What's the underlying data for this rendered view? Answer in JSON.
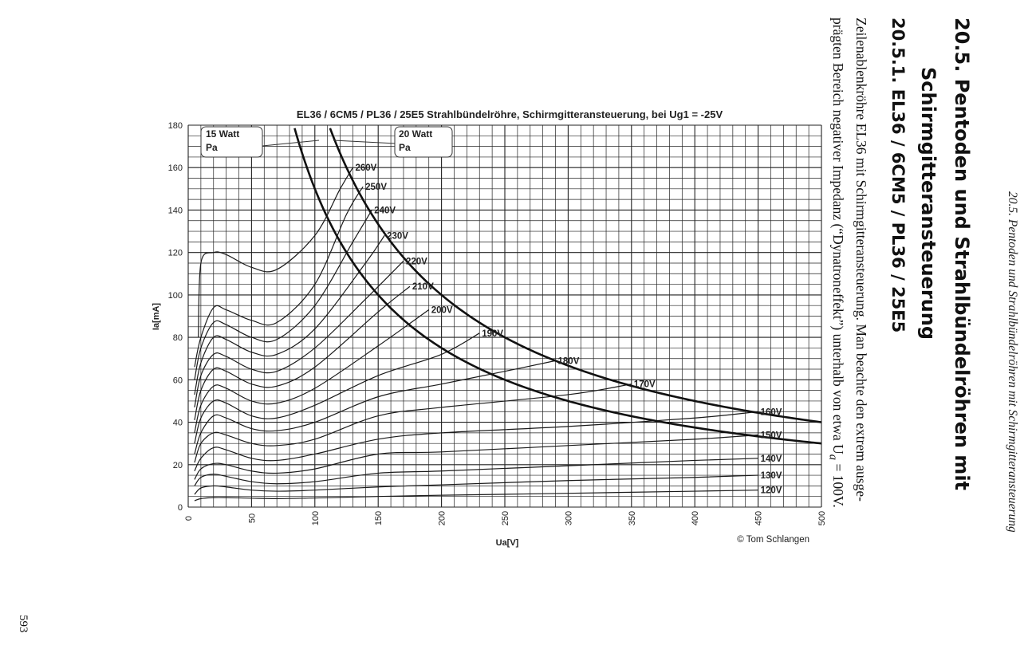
{
  "page": {
    "running_head": "20.5. Pentoden und Strahlbündelröhren mit Schirmgitteransteuerung",
    "section_title_line1": "20.5. Pentoden und Strahlbündelröhren mit",
    "section_title_line2": "Schirmgitteransteuerung",
    "subsection_title": "20.5.1. EL36 / 6CM5 / PL36 / 25E5",
    "body_line1": "Zeilenablenkröhre EL36 mit Schirmgitteransteuerung. Man beachte den extrem ausge-",
    "body_line2": "prägten Bereich negativer Impedanz (“Dynatroneffekt”) unterhalb von etwa U",
    "body_line2_sub": "a",
    "body_line2_end": " = 100V.",
    "page_number": "593"
  },
  "chart_data": {
    "type": "line",
    "title": "EL36 / 6CM5 / PL36 / 25E5 Strahlbündelröhre, Schirmgitteransteuerung, bei Ug1 = -25V",
    "xlabel": "Ua[V]",
    "ylabel": "Ia[mA]",
    "xlim": [
      0,
      500
    ],
    "ylim": [
      0,
      180
    ],
    "x_ticks": [
      "0",
      "50",
      "100",
      "150",
      "200",
      "250",
      "300",
      "350",
      "400",
      "450",
      "500"
    ],
    "y_ticks": [
      "0",
      "20",
      "40",
      "60",
      "80",
      "100",
      "120",
      "140",
      "160",
      "180"
    ],
    "grid": true,
    "copyright": "© Tom Schlangen",
    "power_limits": [
      {
        "label_line1": "15 Watt",
        "label_line2": "Pa",
        "watts": 15
      },
      {
        "label_line1": "20 Watt",
        "label_line2": "Pa",
        "watts": 20
      }
    ],
    "series": [
      {
        "name": "120V",
        "x": [
          5,
          10,
          20,
          30,
          50,
          70,
          100,
          150,
          200,
          300,
          400,
          450
        ],
        "y": [
          3,
          4,
          4.5,
          4.5,
          4.2,
          4,
          4.3,
          5,
          5.6,
          6.5,
          7.5,
          8
        ]
      },
      {
        "name": "130V",
        "x": [
          5,
          10,
          20,
          30,
          50,
          70,
          100,
          150,
          200,
          300,
          400,
          450
        ],
        "y": [
          6,
          9,
          10,
          9.5,
          8,
          7.5,
          8,
          9.5,
          10.5,
          12.5,
          14,
          15
        ]
      },
      {
        "name": "140V",
        "x": [
          5,
          10,
          20,
          30,
          50,
          70,
          100,
          150,
          200,
          300,
          400,
          450
        ],
        "y": [
          10,
          14,
          15.5,
          14.5,
          12,
          11,
          12,
          16,
          17,
          19.5,
          22,
          23
        ]
      },
      {
        "name": "150V",
        "x": [
          5,
          10,
          20,
          30,
          50,
          70,
          100,
          150,
          200,
          300,
          400,
          450
        ],
        "y": [
          13,
          18,
          20.5,
          20,
          17,
          16,
          18,
          25,
          26,
          29,
          32,
          34
        ]
      },
      {
        "name": "160V",
        "x": [
          5,
          10,
          20,
          30,
          50,
          70,
          100,
          150,
          200,
          300,
          400,
          450
        ],
        "y": [
          17,
          23,
          28,
          27,
          23,
          22,
          25,
          32,
          35,
          38,
          42,
          45
        ]
      },
      {
        "name": "170V",
        "x": [
          5,
          10,
          20,
          30,
          50,
          70,
          100,
          150,
          200,
          300,
          350
        ],
        "y": [
          21,
          30,
          35,
          34,
          30,
          29,
          32,
          43,
          47,
          53,
          58
        ]
      },
      {
        "name": "180V",
        "x": [
          5,
          10,
          20,
          30,
          50,
          70,
          100,
          150,
          200,
          250,
          290
        ],
        "y": [
          25,
          35,
          43,
          42,
          37,
          36,
          40,
          52,
          58,
          64,
          69
        ]
      },
      {
        "name": "190V",
        "x": [
          5,
          10,
          20,
          30,
          50,
          70,
          100,
          150,
          200,
          230
        ],
        "y": [
          30,
          42,
          50,
          49,
          43,
          42,
          48,
          62,
          72,
          82
        ]
      },
      {
        "name": "200V",
        "x": [
          5,
          10,
          20,
          30,
          50,
          70,
          100,
          150,
          190
        ],
        "y": [
          35,
          48,
          57,
          56,
          50,
          49,
          56,
          76,
          93
        ]
      },
      {
        "name": "210V",
        "x": [
          5,
          10,
          20,
          30,
          50,
          70,
          100,
          150,
          175
        ],
        "y": [
          41,
          55,
          65,
          64,
          58,
          57,
          66,
          92,
          104
        ]
      },
      {
        "name": "220V",
        "x": [
          5,
          10,
          20,
          30,
          50,
          70,
          100,
          140,
          170
        ],
        "y": [
          47,
          62,
          72,
          71,
          65,
          64,
          75,
          98,
          116
        ]
      },
      {
        "name": "230V",
        "x": [
          5,
          10,
          20,
          30,
          50,
          70,
          100,
          140,
          155
        ],
        "y": [
          53,
          68,
          80,
          79,
          73,
          72,
          84,
          115,
          128
        ]
      },
      {
        "name": "240V",
        "x": [
          5,
          10,
          20,
          30,
          50,
          70,
          100,
          130,
          145
        ],
        "y": [
          60,
          75,
          87,
          86,
          80,
          79,
          95,
          125,
          140
        ]
      },
      {
        "name": "250V",
        "x": [
          5,
          10,
          20,
          30,
          50,
          70,
          100,
          125,
          138
        ],
        "y": [
          66,
          80,
          94,
          93,
          88,
          87,
          105,
          138,
          151
        ]
      },
      {
        "name": "260V",
        "x": [
          8,
          10,
          20,
          30,
          50,
          70,
          100,
          120,
          130
        ],
        "y": [
          80,
          115,
          120,
          119,
          113,
          112,
          128,
          150,
          160
        ]
      }
    ]
  }
}
